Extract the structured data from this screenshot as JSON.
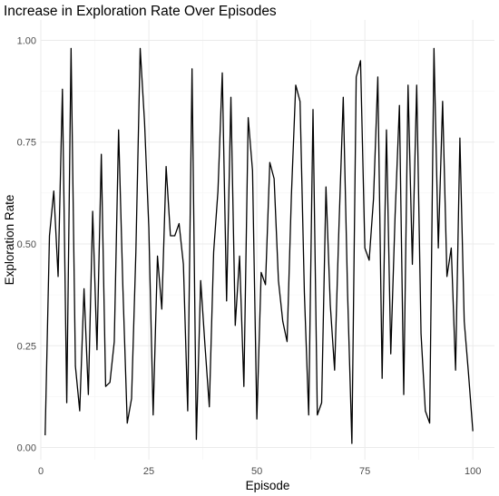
{
  "chart_data": {
    "type": "line",
    "title": "Increase in Exploration Rate Over Episodes",
    "xlabel": "Episode",
    "ylabel": "Exploration Rate",
    "xlim": [
      0,
      105
    ],
    "ylim": [
      -0.03,
      1.05
    ],
    "x_ticks": [
      0,
      25,
      50,
      75,
      100
    ],
    "x_tick_labels": [
      "0",
      "25",
      "50",
      "75",
      "100"
    ],
    "y_ticks": [
      0.0,
      0.25,
      0.5,
      0.75,
      1.0
    ],
    "y_tick_labels": [
      "0.00",
      "0.25",
      "0.50",
      "0.75",
      "1.00"
    ],
    "grid": true,
    "line_color": "#000000",
    "x": [
      1,
      2,
      3,
      4,
      5,
      6,
      7,
      8,
      9,
      10,
      11,
      12,
      13,
      14,
      15,
      16,
      17,
      18,
      19,
      20,
      21,
      22,
      23,
      24,
      25,
      26,
      27,
      28,
      29,
      30,
      31,
      32,
      33,
      34,
      35,
      36,
      37,
      38,
      39,
      40,
      41,
      42,
      43,
      44,
      45,
      46,
      47,
      48,
      49,
      50,
      51,
      52,
      53,
      54,
      55,
      56,
      57,
      58,
      59,
      60,
      61,
      62,
      63,
      64,
      65,
      66,
      67,
      68,
      69,
      70,
      71,
      72,
      73,
      74,
      75,
      76,
      77,
      78,
      79,
      80,
      81,
      82,
      83,
      84,
      85,
      86,
      87,
      88,
      89,
      90,
      91,
      92,
      93,
      94,
      95,
      96,
      97,
      98,
      99,
      100
    ],
    "y": [
      0.03,
      0.52,
      0.63,
      0.42,
      0.88,
      0.11,
      0.98,
      0.2,
      0.09,
      0.39,
      0.13,
      0.58,
      0.24,
      0.72,
      0.15,
      0.16,
      0.26,
      0.78,
      0.39,
      0.06,
      0.12,
      0.48,
      0.98,
      0.8,
      0.54,
      0.08,
      0.47,
      0.34,
      0.69,
      0.52,
      0.52,
      0.55,
      0.45,
      0.09,
      0.93,
      0.02,
      0.41,
      0.25,
      0.1,
      0.48,
      0.63,
      0.92,
      0.36,
      0.86,
      0.3,
      0.47,
      0.15,
      0.81,
      0.68,
      0.07,
      0.43,
      0.4,
      0.7,
      0.66,
      0.41,
      0.31,
      0.26,
      0.62,
      0.89,
      0.85,
      0.38,
      0.08,
      0.83,
      0.08,
      0.11,
      0.64,
      0.35,
      0.19,
      0.54,
      0.86,
      0.38,
      0.01,
      0.91,
      0.95,
      0.49,
      0.46,
      0.61,
      0.91,
      0.17,
      0.78,
      0.23,
      0.57,
      0.84,
      0.13,
      0.89,
      0.45,
      0.89,
      0.28,
      0.09,
      0.06,
      0.98,
      0.49,
      0.85,
      0.42,
      0.49,
      0.19,
      0.76,
      0.31,
      0.18,
      0.04
    ]
  }
}
